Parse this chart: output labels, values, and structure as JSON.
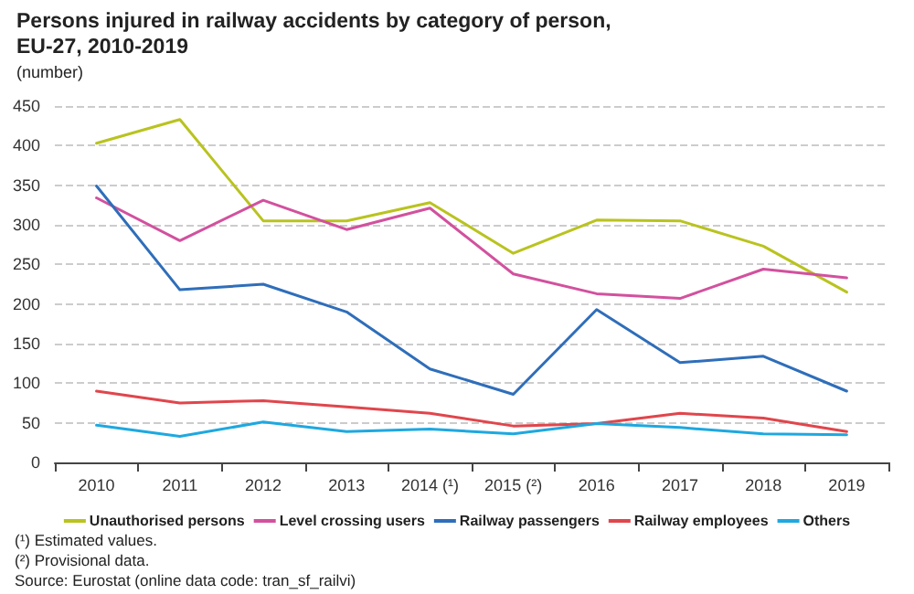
{
  "chart_data": {
    "type": "line",
    "title": "Persons injured in railway accidents by category of person, EU-27, 2010-2019",
    "subtitle": "(number)",
    "categories": [
      "2010",
      "2011",
      "2012",
      "2013",
      "2014 (¹)",
      "2015 (²)",
      "2016",
      "2017",
      "2018",
      "2019"
    ],
    "series": [
      {
        "name": "Unauthorised persons",
        "color": "#b9c31f",
        "values": [
          403,
          433,
          305,
          305,
          328,
          264,
          306,
          305,
          273,
          215
        ]
      },
      {
        "name": "Level crossing users",
        "color": "#d2519e",
        "values": [
          334,
          280,
          331,
          294,
          321,
          238,
          213,
          207,
          244,
          233
        ]
      },
      {
        "name": "Railway passengers",
        "color": "#2f6eba",
        "values": [
          349,
          218,
          225,
          190,
          118,
          86,
          193,
          126,
          134,
          90
        ]
      },
      {
        "name": "Railway employees",
        "color": "#e0464c",
        "values": [
          90,
          75,
          78,
          70,
          62,
          46,
          49,
          62,
          56,
          39
        ]
      },
      {
        "name": "Others",
        "color": "#1ea8e0",
        "values": [
          47,
          33,
          51,
          39,
          42,
          36,
          49,
          44,
          36,
          35
        ]
      }
    ],
    "ylim": [
      0,
      450
    ],
    "yticks": [
      0,
      50,
      100,
      150,
      200,
      250,
      300,
      350,
      400,
      450
    ],
    "grid": "y",
    "legend": "bottom",
    "marker": "none",
    "line_style": "solid",
    "annotations": [
      "(¹) Estimated values.",
      "(²) Provisional data.",
      "Source: Eurostat (online data code: tran_sf_railvi)"
    ]
  }
}
